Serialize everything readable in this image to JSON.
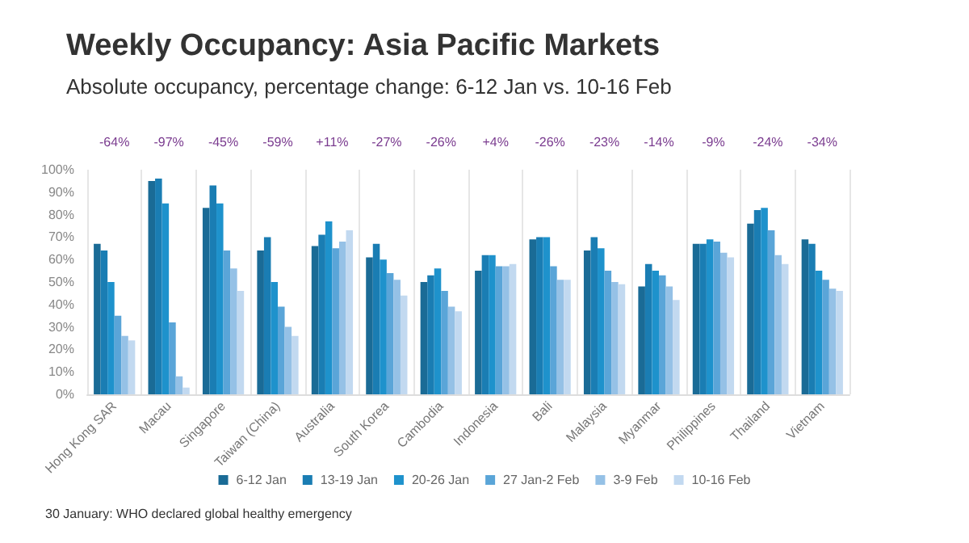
{
  "chart_data": {
    "type": "bar",
    "title": "Weekly Occupancy: Asia Pacific Markets",
    "subtitle": "Absolute occupancy, percentage change: 6-12 Jan vs. 10-16 Feb",
    "categories": [
      "Hong Kong SAR",
      "Macau",
      "Singapore",
      "Taiwan (China)",
      "Australia",
      "South Korea",
      "Cambodia",
      "Indonesia",
      "Bali",
      "Malaysia",
      "Myanmar",
      "Philippines",
      "Thailand",
      "Vietnam"
    ],
    "series": [
      {
        "name": "6-12 Jan",
        "color": "#1a6b96",
        "values": [
          67,
          95,
          83,
          64,
          66,
          61,
          50,
          55,
          69,
          64,
          48,
          67,
          76,
          69
        ]
      },
      {
        "name": "13-19 Jan",
        "color": "#1a7db3",
        "values": [
          64,
          96,
          93,
          70,
          71,
          67,
          53,
          62,
          70,
          70,
          58,
          67,
          82,
          67
        ]
      },
      {
        "name": "20-26 Jan",
        "color": "#1e92cc",
        "values": [
          50,
          85,
          85,
          50,
          77,
          60,
          56,
          62,
          70,
          65,
          55,
          69,
          83,
          55
        ]
      },
      {
        "name": "27 Jan-2 Feb",
        "color": "#5aa5d8",
        "values": [
          35,
          32,
          64,
          39,
          65,
          54,
          46,
          57,
          57,
          55,
          53,
          68,
          73,
          51
        ]
      },
      {
        "name": "3-9 Feb",
        "color": "#95c1e6",
        "values": [
          26,
          8,
          56,
          30,
          68,
          51,
          39,
          57,
          51,
          50,
          48,
          63,
          62,
          47
        ]
      },
      {
        "name": "10-16 Feb",
        "color": "#c2d9f0",
        "values": [
          24,
          3,
          46,
          26,
          73,
          44,
          37,
          58,
          51,
          49,
          42,
          61,
          58,
          46
        ]
      }
    ],
    "ylim": [
      0,
      100
    ],
    "yticks": [
      {
        "value": 0,
        "label": "0%"
      },
      {
        "value": 10,
        "label": "10%"
      },
      {
        "value": 20,
        "label": "20%"
      },
      {
        "value": 30,
        "label": "30%"
      },
      {
        "value": 40,
        "label": "40%"
      },
      {
        "value": 50,
        "label": "50%"
      },
      {
        "value": 60,
        "label": "60%"
      },
      {
        "value": 70,
        "label": "70%"
      },
      {
        "value": 80,
        "label": "80%"
      },
      {
        "value": 90,
        "label": "90%"
      },
      {
        "value": 100,
        "label": "100%"
      }
    ],
    "grid": "x",
    "legend": "bottom",
    "annotations": [
      "-64%",
      "-97%",
      "-45%",
      "-59%",
      "+11%",
      "-27%",
      "-26%",
      "+4%",
      "-26%",
      "-23%",
      "-14%",
      "-9%",
      "-24%",
      "-34%",
      "30 January: WHO declared global healthy emergency"
    ]
  }
}
